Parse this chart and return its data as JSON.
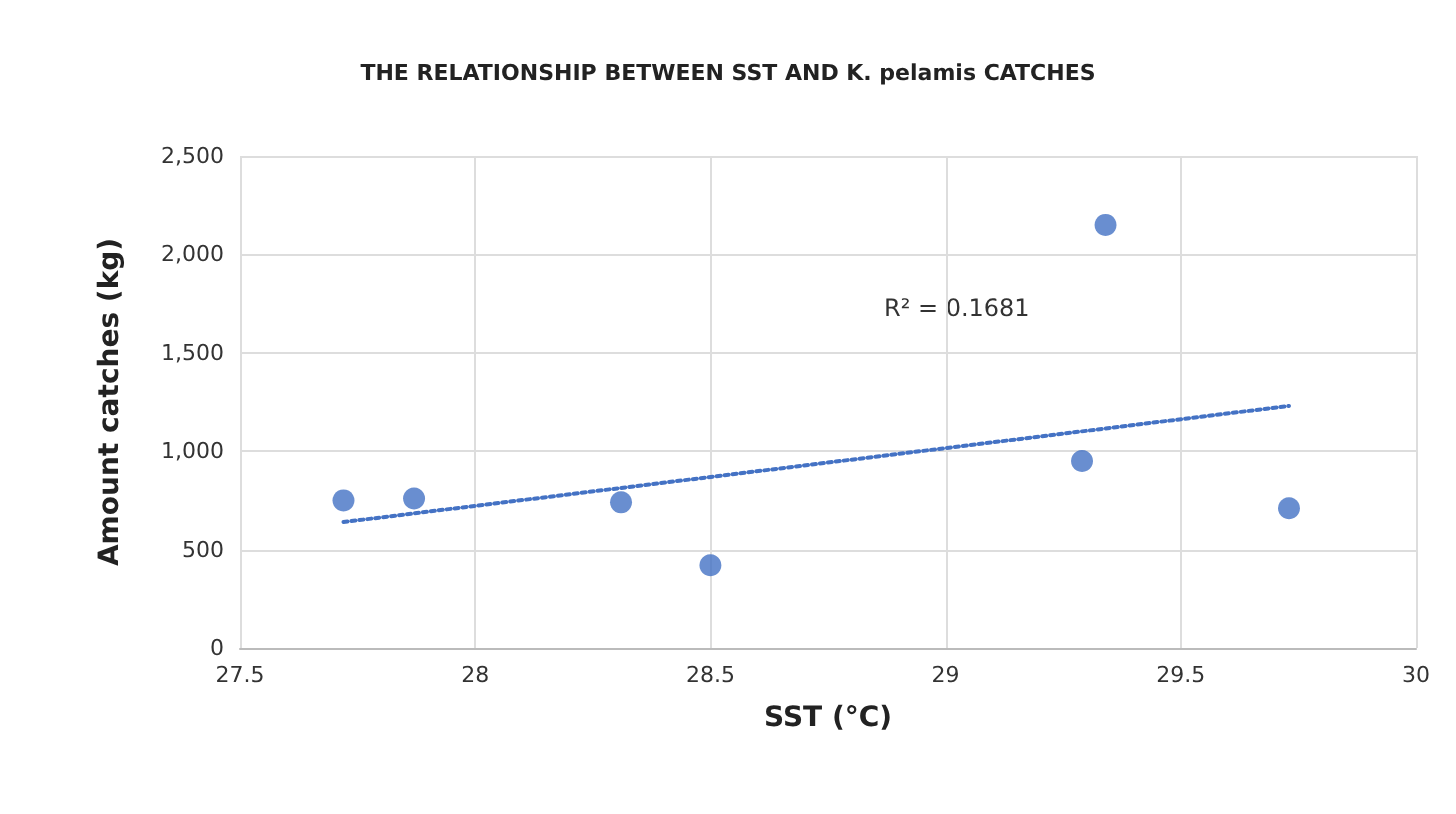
{
  "chart_data": {
    "type": "scatter",
    "title": "THE RELATIONSHIP BETWEEN SST AND K. pelamis CATCHES",
    "xlabel": "SST (°C)",
    "ylabel": "Amount catches (kg)",
    "annotations": [
      "R² = 0.1681"
    ],
    "x": [
      27.72,
      27.87,
      28.31,
      28.5,
      29.29,
      29.34,
      29.73
    ],
    "series": [
      {
        "color": "#4472c4",
        "values": [
          750,
          760,
          740,
          420,
          950,
          2150,
          710
        ],
        "marker": "circle"
      },
      {
        "type": "line",
        "color": "#4472c4",
        "x": [
          27.72,
          29.73
        ],
        "values": [
          640,
          1230
        ],
        "marker": "none",
        "line_style": "dotted"
      }
    ],
    "xlim": [
      27.5,
      30
    ],
    "xticks": [
      27.5,
      28,
      28.5,
      29,
      29.5,
      30
    ],
    "ylim": [
      0,
      2500
    ],
    "yticks": [
      0,
      500,
      {
        "value": 1000,
        "label": "1,000"
      },
      {
        "value": 1500,
        "label": "1,500"
      },
      {
        "value": 2000,
        "label": "2,000"
      },
      {
        "value": 2500,
        "label": "2,500"
      }
    ],
    "grid": true
  }
}
